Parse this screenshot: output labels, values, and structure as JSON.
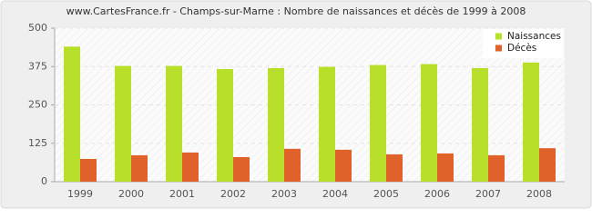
{
  "chart_data": {
    "type": "bar",
    "title": "www.CartesFrance.fr - Champs-sur-Marne : Nombre de naissances et décès de 1999 à 2008",
    "categories": [
      "1999",
      "2000",
      "2001",
      "2002",
      "2003",
      "2004",
      "2005",
      "2006",
      "2007",
      "2008"
    ],
    "series": [
      {
        "name": "Naissances",
        "color": "#b8e02a",
        "values": [
          440,
          377,
          377,
          367,
          370,
          374,
          380,
          383,
          370,
          388
        ]
      },
      {
        "name": "Décès",
        "color": "#e0622a",
        "values": [
          74,
          86,
          95,
          80,
          107,
          104,
          89,
          92,
          86,
          109
        ]
      }
    ],
    "ylim": [
      0,
      500
    ],
    "yticks": [
      0,
      125,
      250,
      375,
      500
    ],
    "grid": true,
    "legend": "top-right"
  }
}
